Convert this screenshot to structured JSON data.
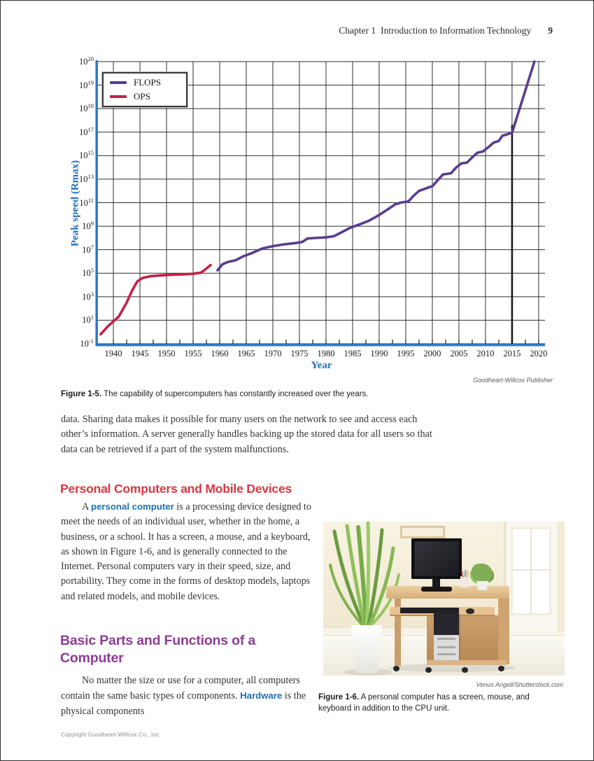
{
  "header": {
    "chapter": "Chapter 1",
    "title": "Introduction to Information Technology",
    "page_number": "9"
  },
  "figure_1_5": {
    "credit": "Goodheart-Willcox Publisher",
    "caption_label": "Figure 1-5.",
    "caption_text": " The capability of supercomputers has constantly increased over the years."
  },
  "body": {
    "paragraph_1": "data. Sharing data makes it possible for many users on the network to see and access each other’s information. A server generally handles backing up the stored data for all users so that data can be retrieved if a part of the system malfunctions.",
    "section_1": {
      "heading": "Personal Computers and Mobile Devices",
      "lead": "A ",
      "term": "personal computer",
      "rest": " is a processing device designed to meet the needs of an individual user, whether in the home, a business, or a school. It has a screen, a mouse, and a keyboard, as shown in Figure 1-6, and is generally connected to the Internet. Personal computers vary in their speed, size, and portability. They come in the forms of desktop models, laptops and related models, and mobile devices."
    },
    "section_2": {
      "heading": "Basic Parts and Functions of a Computer",
      "lead": "No matter the size or use for a computer, all computers contain the same basic types of components. ",
      "term": "Hardware",
      "rest": " is the physical components"
    }
  },
  "figure_1_6": {
    "credit": "Venus Angell/Shutterstock.com",
    "caption_label": "Figure 1-6.",
    "caption_text": " A personal computer has a screen, mouse, and keyboard in addition to the CPU unit."
  },
  "footer": "Copyright Goodheart-Willcox Co., Inc.",
  "chart_data": {
    "type": "line",
    "xlabel": "Year",
    "ylabel": "Peak speed (Rmax)",
    "x_ticks": [
      1940,
      1945,
      1950,
      1955,
      1960,
      1965,
      1970,
      1975,
      1980,
      1985,
      1990,
      1995,
      2000,
      2005,
      2010,
      2015,
      2020
    ],
    "x_minor_step": 2.5,
    "x_range": [
      1937.1,
      2021.2
    ],
    "y_tick_exponents": [
      20,
      19,
      18,
      17,
      15,
      13,
      11,
      9,
      7,
      5,
      3,
      1,
      -1
    ],
    "grid": true,
    "legend_position": "top-left",
    "annotation_line": {
      "x": 2015,
      "y_top_exponent": 17.3
    },
    "axis_color": "#2e78c0",
    "grid_color": "#2e2e2e",
    "series": [
      {
        "name": "FLOPS",
        "color": "#5a3b90",
        "points": [
          [
            1959.6,
            5.25
          ],
          [
            1960.5,
            5.75
          ],
          [
            1961.5,
            5.95
          ],
          [
            1963,
            6.1
          ],
          [
            1964.5,
            6.45
          ],
          [
            1966,
            6.7
          ],
          [
            1968,
            7.1
          ],
          [
            1970,
            7.3
          ],
          [
            1972,
            7.45
          ],
          [
            1974,
            7.55
          ],
          [
            1975.5,
            7.65
          ],
          [
            1976.5,
            7.95
          ],
          [
            1978,
            8.0
          ],
          [
            1980,
            8.05
          ],
          [
            1981.5,
            8.15
          ],
          [
            1983,
            8.5
          ],
          [
            1984.5,
            8.85
          ],
          [
            1986,
            9.1
          ],
          [
            1988,
            9.45
          ],
          [
            1990,
            9.95
          ],
          [
            1991.5,
            10.4
          ],
          [
            1993,
            10.85
          ],
          [
            1994,
            11.0
          ],
          [
            1995.5,
            11.1
          ],
          [
            1996.5,
            11.6
          ],
          [
            1997.5,
            12.0
          ],
          [
            1999,
            12.25
          ],
          [
            2000,
            12.4
          ],
          [
            2001,
            12.9
          ],
          [
            2002,
            13.4
          ],
          [
            2003.5,
            13.5
          ],
          [
            2004.5,
            14.0
          ],
          [
            2005.5,
            14.35
          ],
          [
            2006.5,
            14.4
          ],
          [
            2007.5,
            14.85
          ],
          [
            2008.5,
            15.25
          ],
          [
            2009.5,
            15.35
          ],
          [
            2010.5,
            15.7
          ],
          [
            2011.5,
            16.1
          ],
          [
            2012.5,
            16.25
          ],
          [
            2013.2,
            16.7
          ],
          [
            2014,
            16.8
          ],
          [
            2015,
            16.95
          ],
          [
            2019.2,
            20
          ]
        ]
      },
      {
        "name": "OPS",
        "color": "#c32047",
        "points": [
          [
            1937.6,
            -0.2
          ],
          [
            1939,
            0.5
          ],
          [
            1940,
            0.9
          ],
          [
            1941,
            1.3
          ],
          [
            1942.5,
            2.5
          ],
          [
            1943.5,
            3.5
          ],
          [
            1944.5,
            4.3
          ],
          [
            1945.5,
            4.6
          ],
          [
            1947,
            4.75
          ],
          [
            1949,
            4.82
          ],
          [
            1951,
            4.87
          ],
          [
            1953,
            4.9
          ],
          [
            1955,
            4.95
          ],
          [
            1956.5,
            5.05
          ],
          [
            1957.5,
            5.4
          ],
          [
            1958.3,
            5.7
          ]
        ]
      }
    ]
  }
}
